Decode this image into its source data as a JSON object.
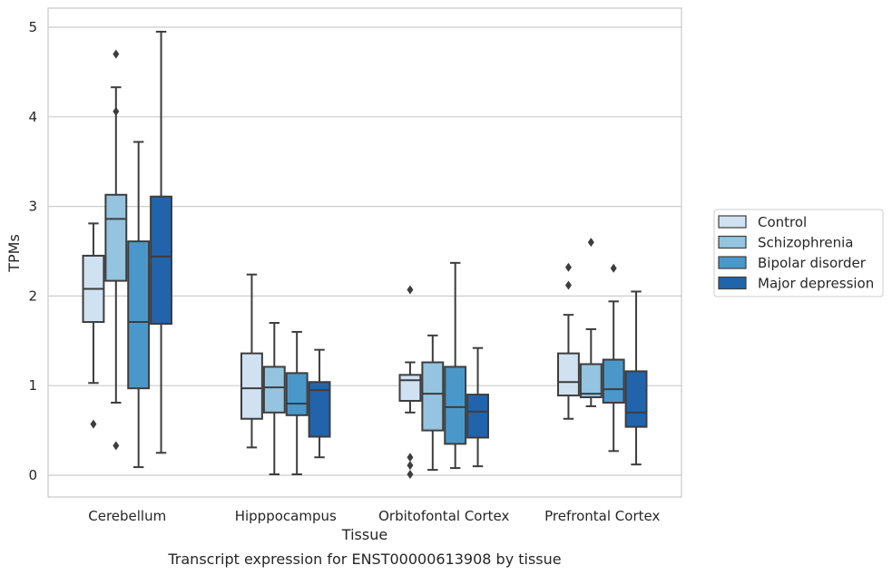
{
  "chart_data": {
    "type": "boxplot",
    "title": "",
    "caption": "Transcript expression for ENST00000613908 by tissue",
    "xlabel": "Tissue",
    "ylabel": "TPMs",
    "ylim": [
      -0.25,
      5.2
    ],
    "yticks": [
      0,
      1,
      2,
      3,
      4,
      5
    ],
    "grid": "horizontal",
    "legend_position": "right",
    "categories": [
      "Cerebellum",
      "Hipppocampus",
      "Orbitofontal Cortex",
      "Prefrontal Cortex"
    ],
    "series": [
      {
        "name": "Control",
        "color": "#d0e1f2",
        "boxes": [
          {
            "whislo": 1.03,
            "q1": 1.71,
            "med": 2.08,
            "q3": 2.45,
            "whishi": 2.81,
            "fliers": [
              0.57
            ]
          },
          {
            "whislo": 0.31,
            "q1": 0.63,
            "med": 0.97,
            "q3": 1.36,
            "whishi": 2.24,
            "fliers": []
          },
          {
            "whislo": 0.7,
            "q1": 0.83,
            "med": 1.06,
            "q3": 1.12,
            "whishi": 1.26,
            "fliers": [
              2.07,
              0.2,
              0.11,
              0.01
            ]
          },
          {
            "whislo": 0.63,
            "q1": 0.89,
            "med": 1.04,
            "q3": 1.36,
            "whishi": 1.79,
            "fliers": [
              2.32,
              2.12
            ]
          }
        ]
      },
      {
        "name": "Schizophrenia",
        "color": "#94c4df",
        "boxes": [
          {
            "whislo": 0.81,
            "q1": 2.17,
            "med": 2.86,
            "q3": 3.13,
            "whishi": 4.33,
            "fliers": [
              4.7,
              4.06,
              0.33
            ]
          },
          {
            "whislo": 0.01,
            "q1": 0.7,
            "med": 0.98,
            "q3": 1.21,
            "whishi": 1.7,
            "fliers": []
          },
          {
            "whislo": 0.06,
            "q1": 0.5,
            "med": 0.91,
            "q3": 1.26,
            "whishi": 1.56,
            "fliers": []
          },
          {
            "whislo": 0.77,
            "q1": 0.87,
            "med": 0.91,
            "q3": 1.24,
            "whishi": 1.63,
            "fliers": [
              2.6
            ]
          }
        ]
      },
      {
        "name": "Bipolar disorder",
        "color": "#4a98c9",
        "boxes": [
          {
            "whislo": 0.09,
            "q1": 0.97,
            "med": 1.71,
            "q3": 2.61,
            "whishi": 3.72,
            "fliers": []
          },
          {
            "whislo": 0.01,
            "q1": 0.67,
            "med": 0.8,
            "q3": 1.14,
            "whishi": 1.6,
            "fliers": []
          },
          {
            "whislo": 0.08,
            "q1": 0.35,
            "med": 0.76,
            "q3": 1.21,
            "whishi": 2.37,
            "fliers": []
          },
          {
            "whislo": 0.27,
            "q1": 0.81,
            "med": 0.96,
            "q3": 1.29,
            "whishi": 1.94,
            "fliers": [
              2.31
            ]
          }
        ]
      },
      {
        "name": "Major depression",
        "color": "#2164ab",
        "boxes": [
          {
            "whislo": 0.25,
            "q1": 1.69,
            "med": 2.44,
            "q3": 3.11,
            "whishi": 4.95,
            "fliers": []
          },
          {
            "whislo": 0.2,
            "q1": 0.43,
            "med": 0.95,
            "q3": 1.04,
            "whishi": 1.4,
            "fliers": []
          },
          {
            "whislo": 0.1,
            "q1": 0.42,
            "med": 0.71,
            "q3": 0.9,
            "whishi": 1.42,
            "fliers": []
          },
          {
            "whislo": 0.12,
            "q1": 0.54,
            "med": 0.7,
            "q3": 1.16,
            "whishi": 2.05,
            "fliers": []
          }
        ]
      }
    ]
  }
}
